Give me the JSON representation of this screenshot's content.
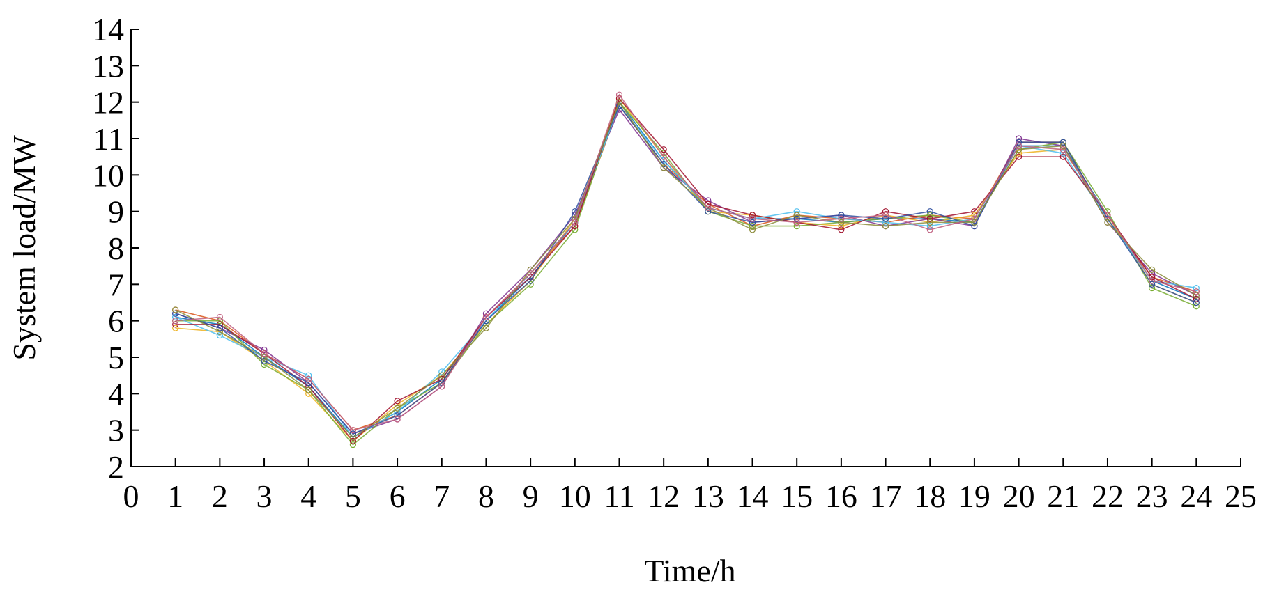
{
  "chart_data": {
    "type": "line",
    "x_label": "Time/h",
    "y_label": "System load/MW",
    "x": [
      1,
      2,
      3,
      4,
      5,
      6,
      7,
      8,
      9,
      10,
      11,
      12,
      13,
      14,
      15,
      16,
      17,
      18,
      19,
      20,
      21,
      22,
      23,
      24
    ],
    "xlim": [
      0,
      25
    ],
    "xticks": [
      0,
      1,
      2,
      3,
      4,
      5,
      6,
      7,
      8,
      9,
      10,
      11,
      12,
      13,
      14,
      15,
      16,
      17,
      18,
      19,
      20,
      21,
      22,
      23,
      24,
      25
    ],
    "ylim": [
      2,
      14
    ],
    "yticks": [
      2,
      3,
      4,
      5,
      6,
      7,
      8,
      9,
      10,
      11,
      12,
      13,
      14
    ],
    "grid": false,
    "markers": true,
    "series": [
      {
        "color": "#0072bd",
        "values": [
          6.1,
          5.9,
          5.0,
          4.2,
          2.8,
          3.5,
          4.4,
          6.0,
          7.2,
          8.7,
          12.0,
          10.4,
          9.1,
          8.8,
          8.8,
          8.7,
          8.8,
          8.8,
          8.7,
          10.8,
          10.8,
          8.9,
          7.1,
          6.6
        ]
      },
      {
        "color": "#d95319",
        "values": [
          6.3,
          6.0,
          5.1,
          4.4,
          3.0,
          3.4,
          4.3,
          6.1,
          7.3,
          8.6,
          11.9,
          10.3,
          9.2,
          8.6,
          8.9,
          8.8,
          8.7,
          8.9,
          8.8,
          10.9,
          10.9,
          8.8,
          7.2,
          6.8
        ]
      },
      {
        "color": "#edb120",
        "values": [
          5.8,
          5.7,
          4.9,
          4.0,
          2.7,
          3.7,
          4.5,
          5.9,
          7.1,
          8.8,
          12.1,
          10.5,
          9.0,
          8.9,
          8.7,
          8.6,
          8.9,
          8.7,
          8.9,
          10.6,
          10.7,
          8.9,
          7.0,
          6.5
        ]
      },
      {
        "color": "#7e2f8e",
        "values": [
          6.2,
          5.8,
          5.2,
          4.3,
          2.9,
          3.3,
          4.2,
          6.2,
          7.4,
          8.9,
          11.8,
          10.2,
          9.3,
          8.7,
          8.8,
          8.9,
          8.6,
          8.8,
          8.6,
          11.0,
          10.8,
          8.7,
          7.3,
          6.7
        ]
      },
      {
        "color": "#77ac30",
        "values": [
          6.0,
          6.0,
          4.8,
          4.1,
          2.6,
          3.6,
          4.3,
          5.9,
          7.0,
          8.5,
          12.0,
          10.6,
          9.0,
          8.6,
          8.6,
          8.7,
          8.8,
          8.9,
          8.7,
          10.7,
          10.9,
          9.0,
          6.9,
          6.4
        ]
      },
      {
        "color": "#4dbeee",
        "values": [
          6.1,
          5.6,
          5.0,
          4.5,
          2.8,
          3.5,
          4.6,
          6.0,
          7.3,
          8.7,
          11.9,
          10.4,
          9.1,
          8.8,
          9.0,
          8.8,
          8.7,
          8.6,
          8.8,
          10.8,
          10.6,
          8.8,
          7.1,
          6.9
        ]
      },
      {
        "color": "#a2142f",
        "values": [
          5.9,
          5.9,
          5.1,
          4.2,
          2.7,
          3.8,
          4.4,
          6.1,
          7.2,
          8.6,
          12.1,
          10.7,
          9.2,
          8.9,
          8.7,
          8.5,
          9.0,
          8.8,
          9.0,
          10.5,
          10.5,
          8.9,
          7.2,
          6.6
        ]
      },
      {
        "color": "#2f4f9f",
        "values": [
          6.2,
          5.8,
          4.9,
          4.3,
          2.9,
          3.4,
          4.3,
          6.0,
          7.1,
          9.0,
          11.9,
          10.3,
          9.0,
          8.7,
          8.8,
          8.9,
          8.8,
          9.0,
          8.6,
          10.9,
          10.9,
          8.8,
          7.0,
          6.5
        ]
      },
      {
        "color": "#8c8c3a",
        "values": [
          6.3,
          5.7,
          5.0,
          4.1,
          2.8,
          3.6,
          4.5,
          5.8,
          7.4,
          8.8,
          12.0,
          10.2,
          9.1,
          8.5,
          8.9,
          8.7,
          8.6,
          8.7,
          8.7,
          10.7,
          10.8,
          8.7,
          7.4,
          6.7
        ]
      },
      {
        "color": "#c06080",
        "values": [
          6.0,
          6.1,
          5.1,
          4.4,
          3.0,
          3.3,
          4.2,
          6.1,
          7.3,
          8.7,
          12.2,
          10.5,
          9.1,
          8.8,
          8.7,
          8.8,
          8.9,
          8.5,
          8.8,
          10.8,
          10.7,
          8.9,
          7.1,
          6.8
        ]
      }
    ]
  }
}
